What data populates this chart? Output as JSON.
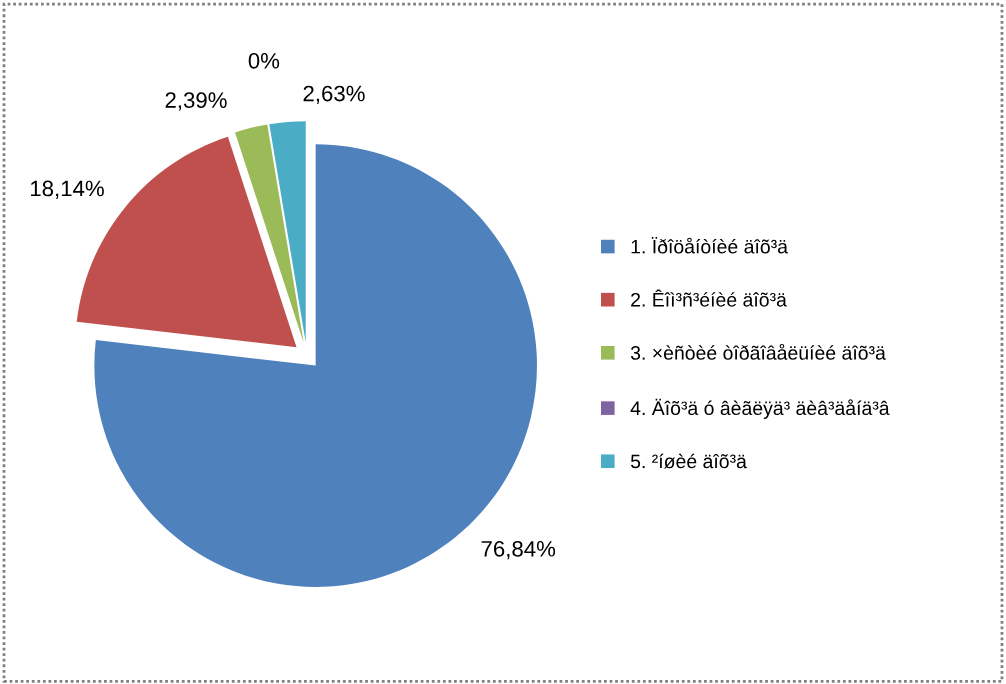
{
  "chart_data": {
    "type": "pie",
    "categories": [
      "1. Ïðîöåíòíèé äîõ³ä",
      "2. Êîì³ñ³éíèé äîõ³ä",
      "3. ×èñòèé òîðãîâåëüíèé äîõ³ä",
      "4. Äîõ³ä ó âèãëÿä³ äèâ³äåíä³â",
      "5. ²íøèé äîõ³ä"
    ],
    "values": [
      76.84,
      18.14,
      2.39,
      0,
      2.63
    ],
    "value_labels": [
      "76,84%",
      "18,14%",
      "2,39%",
      "0%",
      "2,63%"
    ],
    "colors": [
      "#4f81bd",
      "#c0504d",
      "#9bbb59",
      "#8064a2",
      "#4bacc6"
    ],
    "legend": "right"
  }
}
